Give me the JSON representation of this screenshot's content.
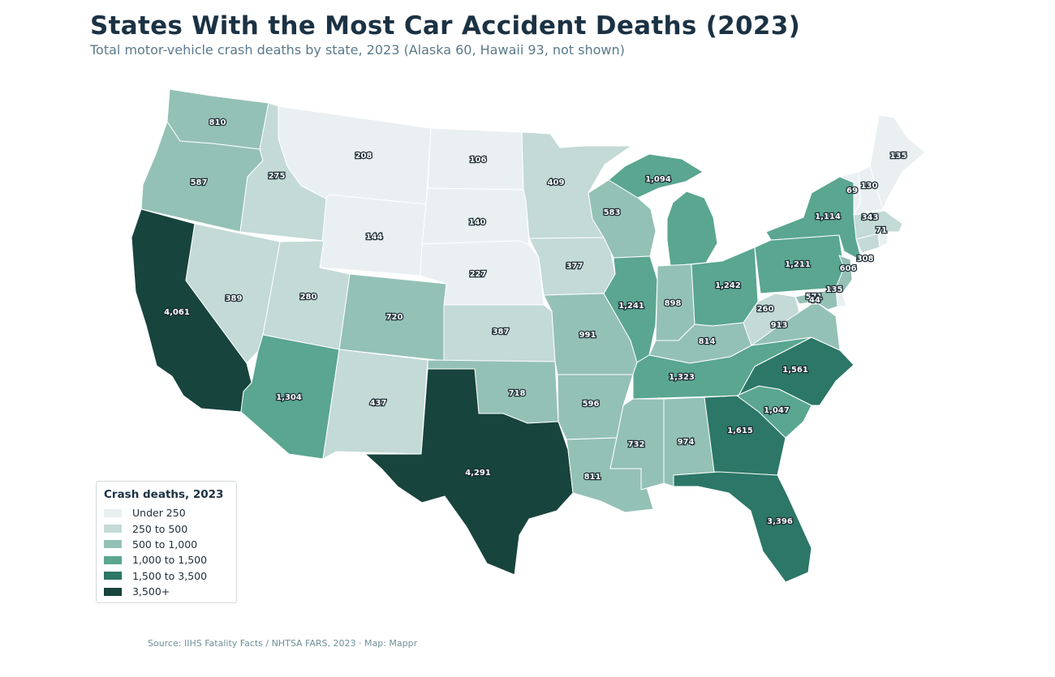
{
  "title": "States With the Most Car Accident Deaths (2023)",
  "subtitle": "Total motor-vehicle crash deaths by state, 2023 (Alaska 60, Hawaii 93, not shown)",
  "source": "Source: IIHS Fatality Facts / NHTSA FARS, 2023 · Map: Mappr",
  "legend": {
    "title": "Crash deaths, 2023",
    "items": [
      {
        "label": "Under 250",
        "color": "#eaf0f2"
      },
      {
        "label": "250 to 500",
        "color": "#c3dad6"
      },
      {
        "label": "500 to 1,000",
        "color": "#94c1b5"
      },
      {
        "label": "1,000 to 1,500",
        "color": "#5aa690"
      },
      {
        "label": "1,500 to 3,500",
        "color": "#2c7767"
      },
      {
        "label": "3,500+",
        "color": "#17443d"
      }
    ]
  },
  "states": [
    {
      "id": "WA",
      "label": "810",
      "value": 810
    },
    {
      "id": "OR",
      "label": "587",
      "value": 587
    },
    {
      "id": "CA",
      "label": "4,061",
      "value": 4061
    },
    {
      "id": "ID",
      "label": "275",
      "value": 275
    },
    {
      "id": "NV",
      "label": "389",
      "value": 389
    },
    {
      "id": "MT",
      "label": "208",
      "value": 208
    },
    {
      "id": "WY",
      "label": "144",
      "value": 144
    },
    {
      "id": "UT",
      "label": "280",
      "value": 280
    },
    {
      "id": "AZ",
      "label": "1,304",
      "value": 1304
    },
    {
      "id": "CO",
      "label": "720",
      "value": 720
    },
    {
      "id": "NM",
      "label": "437",
      "value": 437
    },
    {
      "id": "ND",
      "label": "106",
      "value": 106
    },
    {
      "id": "SD",
      "label": "140",
      "value": 140
    },
    {
      "id": "NE",
      "label": "227",
      "value": 227
    },
    {
      "id": "KS",
      "label": "387",
      "value": 387
    },
    {
      "id": "OK",
      "label": "718",
      "value": 718
    },
    {
      "id": "TX",
      "label": "4,291",
      "value": 4291
    },
    {
      "id": "MN",
      "label": "409",
      "value": 409
    },
    {
      "id": "IA",
      "label": "377",
      "value": 377
    },
    {
      "id": "MO",
      "label": "991",
      "value": 991
    },
    {
      "id": "AR",
      "label": "596",
      "value": 596
    },
    {
      "id": "LA",
      "label": "811",
      "value": 811
    },
    {
      "id": "WI",
      "label": "583",
      "value": 583
    },
    {
      "id": "IL",
      "label": "1,241",
      "value": 1241
    },
    {
      "id": "MI",
      "label": "1,094",
      "value": 1094
    },
    {
      "id": "IN",
      "label": "898",
      "value": 898
    },
    {
      "id": "OH",
      "label": "1,242",
      "value": 1242
    },
    {
      "id": "KY",
      "label": "814",
      "value": 814
    },
    {
      "id": "TN",
      "label": "1,323",
      "value": 1323
    },
    {
      "id": "MS",
      "label": "732",
      "value": 732
    },
    {
      "id": "AL",
      "label": "974",
      "value": 974
    },
    {
      "id": "GA",
      "label": "1,615",
      "value": 1615
    },
    {
      "id": "FL",
      "label": "3,396",
      "value": 3396
    },
    {
      "id": "SC",
      "label": "1,047",
      "value": 1047
    },
    {
      "id": "NC",
      "label": "1,561",
      "value": 1561
    },
    {
      "id": "VA",
      "label": "913",
      "value": 913
    },
    {
      "id": "WV",
      "label": "260",
      "value": 260
    },
    {
      "id": "PA",
      "label": "1,211",
      "value": 1211
    },
    {
      "id": "NY",
      "label": "1,114",
      "value": 1114
    },
    {
      "id": "NJ",
      "label": "606",
      "value": 606
    },
    {
      "id": "DE",
      "label": "135",
      "value": 135
    },
    {
      "id": "MD",
      "label": "571",
      "value": 571
    },
    {
      "id": "DC",
      "label": "44",
      "value": 44
    },
    {
      "id": "CT",
      "label": "308",
      "value": 308
    },
    {
      "id": "RI",
      "label": "71",
      "value": 71
    },
    {
      "id": "MA",
      "label": "343",
      "value": 343
    },
    {
      "id": "VT",
      "label": "69",
      "value": 69
    },
    {
      "id": "NH",
      "label": "130",
      "value": 130
    },
    {
      "id": "ME",
      "label": "135",
      "value": 135
    }
  ]
}
